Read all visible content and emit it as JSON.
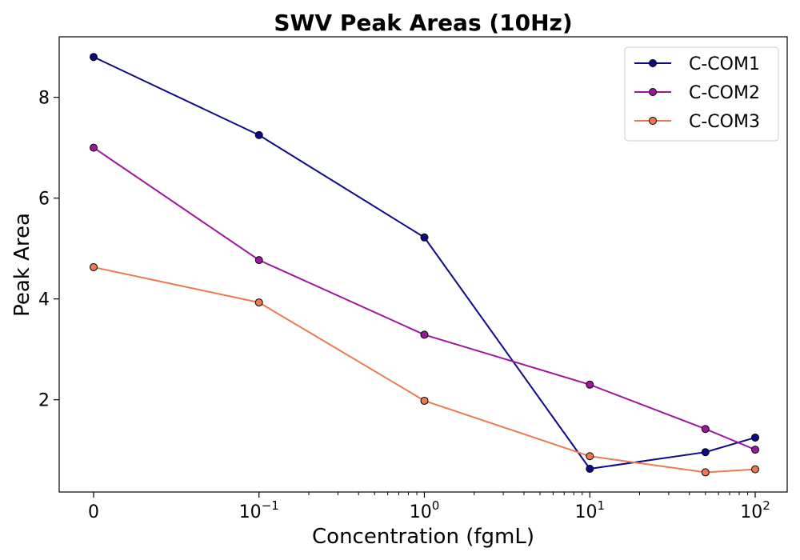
{
  "chart_data": {
    "type": "line",
    "title": "SWV Peak Areas (10Hz)",
    "xlabel": "Concentration (fgmL)",
    "ylabel": "Peak Area",
    "x_scale": "symlog",
    "x_ticks": [
      {
        "value": 0,
        "base": "0",
        "exp": ""
      },
      {
        "value": 0.1,
        "base": "10",
        "exp": "−1"
      },
      {
        "value": 1,
        "base": "10",
        "exp": "0"
      },
      {
        "value": 10,
        "base": "10",
        "exp": "1"
      },
      {
        "value": 100,
        "base": "10",
        "exp": "2"
      }
    ],
    "y_ticks": [
      2,
      4,
      6,
      8
    ],
    "ylim": [
      0.17,
      9.2
    ],
    "legend_position": "top-right",
    "grid": false,
    "x": [
      0,
      0.1,
      1,
      10,
      50,
      100
    ],
    "series": [
      {
        "name": "C-COM1",
        "color": "#0d0887",
        "values": [
          8.8,
          7.25,
          5.22,
          0.63,
          0.96,
          1.25
        ]
      },
      {
        "name": "C-COM2",
        "color": "#9c179e",
        "values": [
          7.0,
          4.77,
          3.29,
          2.3,
          1.42,
          1.01
        ]
      },
      {
        "name": "C-COM3",
        "color": "#ed7953",
        "values": [
          4.63,
          3.93,
          1.98,
          0.88,
          0.56,
          0.62
        ]
      }
    ]
  }
}
